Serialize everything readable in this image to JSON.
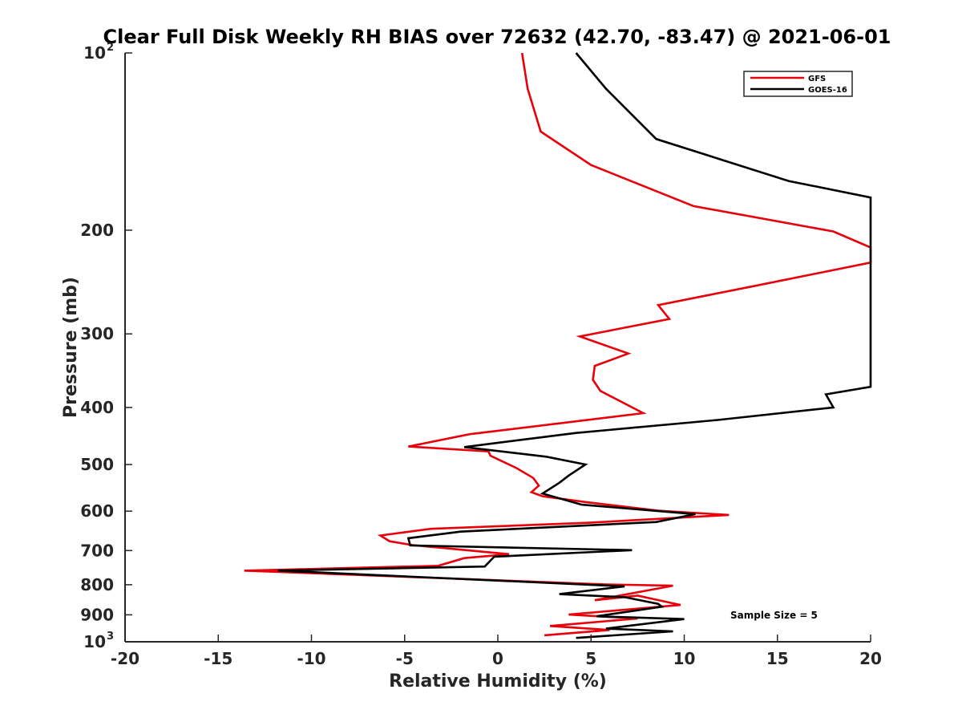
{
  "chart_data": {
    "type": "line",
    "title": "Clear Full Disk Weekly RH BIAS over 72632 (42.70, -83.47) @ 2021-06-01",
    "xlabel": "Relative Humidity (%)",
    "ylabel": "Pressure (mb)",
    "xlim": [
      -20,
      20
    ],
    "ylim": [
      100,
      1000
    ],
    "y_scale": "log",
    "y_reversed": true,
    "x_ticks": [
      "-20",
      "-15",
      "-10",
      "-5",
      "0",
      "5",
      "10",
      "15",
      "20"
    ],
    "y_ticks": [
      {
        "value": 100,
        "base": "10",
        "exp": "2"
      },
      {
        "value": 200,
        "base": "200",
        "exp": ""
      },
      {
        "value": 300,
        "base": "300",
        "exp": ""
      },
      {
        "value": 400,
        "base": "400",
        "exp": ""
      },
      {
        "value": 500,
        "base": "500",
        "exp": ""
      },
      {
        "value": 600,
        "base": "600",
        "exp": ""
      },
      {
        "value": 700,
        "base": "700",
        "exp": ""
      },
      {
        "value": 800,
        "base": "800",
        "exp": ""
      },
      {
        "value": 900,
        "base": "900",
        "exp": ""
      },
      {
        "value": 1000,
        "base": "10",
        "exp": "3"
      }
    ],
    "legend_position": "top-right",
    "annotation": "Sample Size = 5",
    "series": [
      {
        "name": "GFS",
        "color": "#e8000b",
        "points": [
          [
            1.3,
            100
          ],
          [
            1.6,
            115
          ],
          [
            2.3,
            136
          ],
          [
            5.0,
            155
          ],
          [
            10.5,
            182
          ],
          [
            18.0,
            201
          ],
          [
            20.0,
            214
          ],
          [
            20.0,
            227
          ],
          [
            13.7,
            249
          ],
          [
            8.6,
            268
          ],
          [
            9.2,
            283
          ],
          [
            4.4,
            303
          ],
          [
            7.0,
            324
          ],
          [
            5.2,
            340
          ],
          [
            5.1,
            359
          ],
          [
            5.5,
            375
          ],
          [
            7.8,
            409
          ],
          [
            -1.5,
            444
          ],
          [
            -4.8,
            466
          ],
          [
            -0.5,
            475
          ],
          [
            -0.4,
            483
          ],
          [
            1.0,
            507
          ],
          [
            1.9,
            527
          ],
          [
            2.2,
            543
          ],
          [
            1.8,
            557
          ],
          [
            2.4,
            566
          ],
          [
            4.7,
            579
          ],
          [
            8.6,
            599
          ],
          [
            12.4,
            609
          ],
          [
            4.8,
            628
          ],
          [
            -3.6,
            643
          ],
          [
            -6.3,
            660
          ],
          [
            -5.8,
            675
          ],
          [
            -4.6,
            685
          ],
          [
            0.6,
            710
          ],
          [
            -1.8,
            721
          ],
          [
            -3.2,
            743
          ],
          [
            -13.6,
            757
          ],
          [
            5.8,
            799
          ],
          [
            9.4,
            803
          ],
          [
            5.2,
            850
          ],
          [
            7.5,
            835
          ],
          [
            9.8,
            866
          ],
          [
            3.8,
            899
          ],
          [
            7.5,
            913
          ],
          [
            2.8,
            940
          ],
          [
            6.0,
            955
          ],
          [
            2.5,
            975
          ]
        ]
      },
      {
        "name": "GOES-16",
        "color": "#000000",
        "points": [
          [
            4.2,
            100
          ],
          [
            5.8,
            115
          ],
          [
            8.5,
            140
          ],
          [
            15.6,
            165
          ],
          [
            20.0,
            176
          ],
          [
            20.0,
            369
          ],
          [
            17.6,
            380
          ],
          [
            18.0,
            400
          ],
          [
            11.8,
            420
          ],
          [
            4.2,
            442
          ],
          [
            -1.8,
            467
          ],
          [
            2.6,
            485
          ],
          [
            4.7,
            500
          ],
          [
            3.8,
            522
          ],
          [
            3.3,
            537
          ],
          [
            2.4,
            560
          ],
          [
            4.5,
            585
          ],
          [
            10.6,
            607
          ],
          [
            8.5,
            626
          ],
          [
            -2.0,
            650
          ],
          [
            -4.8,
            667
          ],
          [
            -4.7,
            686
          ],
          [
            7.2,
            699
          ],
          [
            -0.2,
            717
          ],
          [
            -0.7,
            745
          ],
          [
            -11.8,
            757
          ],
          [
            6.8,
            805
          ],
          [
            3.3,
            830
          ],
          [
            6.8,
            840
          ],
          [
            8.6,
            862
          ],
          [
            8.8,
            872
          ],
          [
            5.3,
            905
          ],
          [
            10.0,
            915
          ],
          [
            5.8,
            950
          ],
          [
            9.4,
            960
          ],
          [
            4.2,
            985
          ]
        ]
      }
    ]
  }
}
